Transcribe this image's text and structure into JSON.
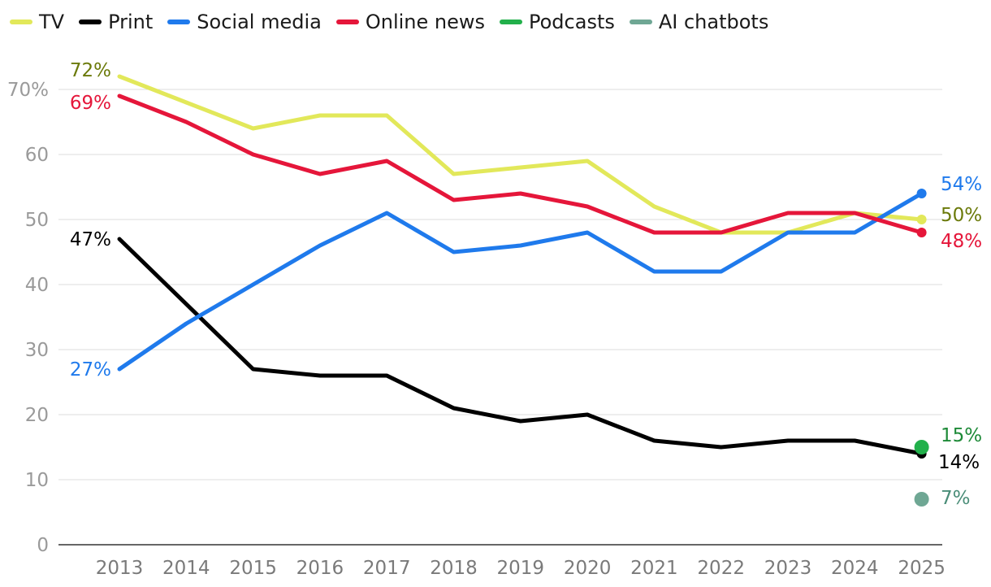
{
  "chart_data": {
    "type": "line",
    "x": [
      "2013",
      "2014",
      "2015",
      "2016",
      "2017",
      "2018",
      "2019",
      "2020",
      "2021",
      "2022",
      "2023",
      "2024",
      "2025"
    ],
    "ylim": [
      0,
      75
    ],
    "yticks": [
      0,
      10,
      20,
      30,
      40,
      50,
      60,
      70
    ],
    "ytick_labels": [
      "0",
      "10",
      "20",
      "30",
      "40",
      "50",
      "60",
      "70%"
    ],
    "grid": "horizontal",
    "legend_position": "top-left",
    "series": [
      {
        "name": "TV",
        "color": "#e2e85a",
        "label_color": "#6b7a0a",
        "values": [
          72,
          68,
          64,
          66,
          66,
          57,
          58,
          59,
          52,
          48,
          48,
          51,
          50
        ],
        "start_label": "72%",
        "end_label": "50%"
      },
      {
        "name": "Print",
        "color": "#000000",
        "label_color": "#000000",
        "values": [
          47,
          37,
          27,
          26,
          26,
          21,
          19,
          20,
          16,
          15,
          16,
          16,
          14
        ],
        "start_label": "47%",
        "end_label": "14%"
      },
      {
        "name": "Social media",
        "color": "#1f7aec",
        "label_color": "#1f7aec",
        "values": [
          27,
          34,
          40,
          46,
          51,
          45,
          46,
          48,
          42,
          42,
          48,
          48,
          54
        ],
        "start_label": "27%",
        "end_label": "54%"
      },
      {
        "name": "Online news",
        "color": "#e5163a",
        "label_color": "#e5163a",
        "values": [
          69,
          65,
          60,
          57,
          59,
          53,
          54,
          52,
          48,
          48,
          51,
          51,
          48
        ],
        "start_label": "69%",
        "end_label": "48%"
      },
      {
        "name": "Podcasts",
        "color": "#22b04b",
        "label_color": "#1e8a38",
        "values": [
          null,
          null,
          null,
          null,
          null,
          null,
          null,
          null,
          null,
          null,
          null,
          null,
          15
        ],
        "start_label": "",
        "end_label": "15%"
      },
      {
        "name": "AI chatbots",
        "color": "#6fa794",
        "label_color": "#4a8d78",
        "values": [
          null,
          null,
          null,
          null,
          null,
          null,
          null,
          null,
          null,
          null,
          null,
          null,
          7
        ],
        "start_label": "",
        "end_label": "7%"
      }
    ]
  }
}
